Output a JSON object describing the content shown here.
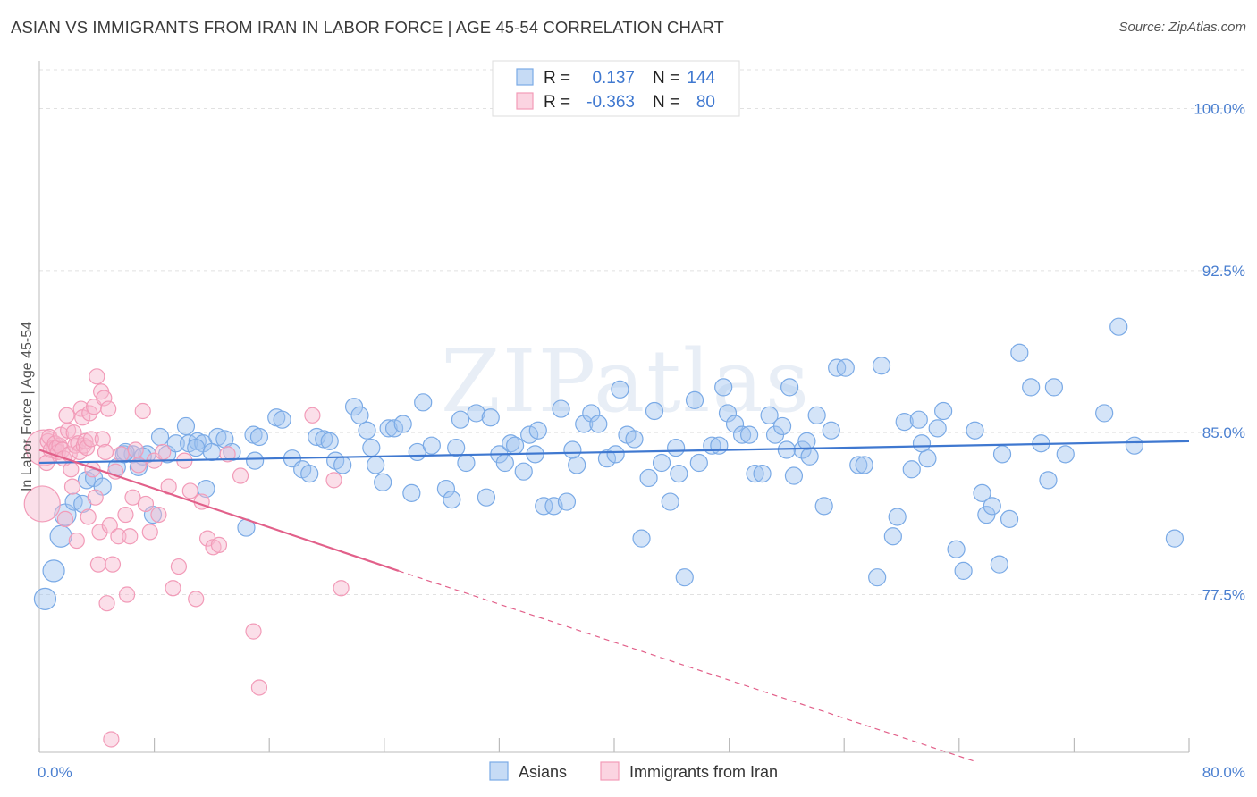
{
  "title": "ASIAN VS IMMIGRANTS FROM IRAN IN LABOR FORCE | AGE 45-54 CORRELATION CHART",
  "source": "Source: ZipAtlas.com",
  "watermark": "ZIPatlas",
  "chart_data": {
    "type": "scatter",
    "ylabel": "In Labor Force | Age 45-54",
    "xlim": [
      0,
      80
    ],
    "ylim": [
      70.2,
      101.8
    ],
    "x_tick_labels": [
      "0.0%",
      "80.0%"
    ],
    "y_ticks": [
      {
        "value": 100.0,
        "label": "100.0%"
      },
      {
        "value": 92.5,
        "label": "92.5%"
      },
      {
        "value": 85.0,
        "label": "85.0%"
      },
      {
        "value": 77.5,
        "label": "77.5%"
      }
    ],
    "legend": {
      "rows": [
        {
          "r_label": "R =",
          "r_value": "0.137",
          "n_label": "N =",
          "n_value": "144"
        },
        {
          "r_label": "R =",
          "r_value": "-0.363",
          "n_label": "N =",
          "n_value": "80"
        }
      ]
    },
    "series": [
      {
        "name": "Asians",
        "color": "#7aaae6",
        "line_color": "#3f78d0",
        "trend": {
          "x0": 0,
          "y0": 83.6,
          "x1": 80,
          "y1": 84.6
        },
        "points": [
          [
            0.4,
            77.3
          ],
          [
            1.0,
            78.6
          ],
          [
            1.5,
            80.2
          ],
          [
            1.8,
            81.2
          ],
          [
            2.4,
            81.8
          ],
          [
            3.3,
            82.8
          ],
          [
            3.8,
            82.9
          ],
          [
            4.4,
            82.5
          ],
          [
            3.0,
            81.7
          ],
          [
            5.4,
            83.4
          ],
          [
            5.9,
            84.0
          ],
          [
            6.5,
            84.0
          ],
          [
            6.9,
            83.4
          ],
          [
            7.5,
            84.0
          ],
          [
            7.9,
            81.2
          ],
          [
            8.4,
            84.8
          ],
          [
            8.9,
            84.0
          ],
          [
            9.5,
            84.5
          ],
          [
            10.4,
            84.5
          ],
          [
            10.2,
            85.3
          ],
          [
            11.0,
            84.6
          ],
          [
            11.4,
            84.5
          ],
          [
            11.6,
            82.4
          ],
          [
            12.4,
            84.8
          ],
          [
            12.9,
            84.7
          ],
          [
            13.4,
            84.1
          ],
          [
            14.4,
            80.6
          ],
          [
            14.9,
            84.9
          ],
          [
            15.3,
            84.8
          ],
          [
            16.5,
            85.7
          ],
          [
            16.9,
            85.6
          ],
          [
            17.6,
            83.8
          ],
          [
            18.3,
            83.3
          ],
          [
            18.8,
            83.1
          ],
          [
            19.3,
            84.8
          ],
          [
            19.8,
            84.7
          ],
          [
            20.2,
            84.6
          ],
          [
            20.6,
            83.7
          ],
          [
            21.1,
            83.5
          ],
          [
            21.9,
            86.2
          ],
          [
            22.3,
            85.8
          ],
          [
            22.8,
            85.1
          ],
          [
            23.1,
            84.3
          ],
          [
            23.4,
            83.5
          ],
          [
            23.9,
            82.7
          ],
          [
            24.3,
            85.2
          ],
          [
            24.7,
            85.2
          ],
          [
            25.3,
            85.4
          ],
          [
            25.9,
            82.2
          ],
          [
            26.3,
            84.1
          ],
          [
            26.7,
            86.4
          ],
          [
            27.3,
            84.4
          ],
          [
            28.3,
            82.4
          ],
          [
            28.7,
            81.9
          ],
          [
            29.3,
            85.6
          ],
          [
            29.7,
            83.6
          ],
          [
            30.4,
            85.9
          ],
          [
            31.1,
            82.0
          ],
          [
            31.4,
            85.7
          ],
          [
            32.0,
            84.0
          ],
          [
            32.4,
            83.6
          ],
          [
            32.8,
            84.5
          ],
          [
            33.1,
            84.4
          ],
          [
            33.7,
            83.2
          ],
          [
            34.1,
            84.9
          ],
          [
            34.7,
            85.1
          ],
          [
            35.1,
            81.6
          ],
          [
            35.8,
            81.6
          ],
          [
            36.3,
            86.1
          ],
          [
            36.7,
            81.8
          ],
          [
            37.4,
            83.5
          ],
          [
            37.9,
            85.4
          ],
          [
            38.4,
            85.9
          ],
          [
            38.9,
            85.4
          ],
          [
            39.5,
            83.8
          ],
          [
            40.1,
            84.0
          ],
          [
            40.4,
            87.0
          ],
          [
            40.9,
            84.9
          ],
          [
            41.4,
            84.7
          ],
          [
            41.9,
            80.1
          ],
          [
            42.4,
            82.9
          ],
          [
            42.8,
            86.0
          ],
          [
            43.3,
            83.6
          ],
          [
            43.9,
            81.8
          ],
          [
            44.5,
            83.1
          ],
          [
            44.9,
            78.3
          ],
          [
            45.6,
            86.5
          ],
          [
            45.9,
            83.6
          ],
          [
            46.8,
            84.4
          ],
          [
            47.3,
            84.4
          ],
          [
            47.6,
            87.1
          ],
          [
            47.9,
            85.9
          ],
          [
            48.4,
            85.4
          ],
          [
            48.9,
            84.9
          ],
          [
            49.4,
            84.9
          ],
          [
            49.8,
            83.1
          ],
          [
            50.3,
            83.1
          ],
          [
            50.8,
            85.8
          ],
          [
            51.2,
            84.9
          ],
          [
            51.7,
            85.3
          ],
          [
            52.2,
            87.1
          ],
          [
            52.5,
            83.0
          ],
          [
            53.1,
            84.2
          ],
          [
            53.6,
            83.9
          ],
          [
            54.1,
            85.8
          ],
          [
            54.6,
            81.6
          ],
          [
            55.1,
            85.1
          ],
          [
            55.5,
            88.0
          ],
          [
            56.1,
            88.0
          ],
          [
            57.0,
            83.5
          ],
          [
            57.4,
            83.5
          ],
          [
            58.3,
            78.3
          ],
          [
            58.6,
            88.1
          ],
          [
            59.4,
            80.2
          ],
          [
            59.7,
            81.1
          ],
          [
            60.2,
            85.5
          ],
          [
            60.7,
            83.3
          ],
          [
            61.2,
            85.6
          ],
          [
            61.8,
            83.8
          ],
          [
            62.5,
            85.2
          ],
          [
            62.9,
            86.0
          ],
          [
            63.8,
            79.6
          ],
          [
            64.3,
            78.6
          ],
          [
            65.1,
            85.1
          ],
          [
            65.6,
            82.2
          ],
          [
            65.9,
            81.2
          ],
          [
            66.3,
            81.6
          ],
          [
            66.8,
            78.9
          ],
          [
            67.5,
            81.0
          ],
          [
            68.2,
            88.7
          ],
          [
            69.0,
            87.1
          ],
          [
            69.7,
            84.5
          ],
          [
            70.2,
            82.8
          ],
          [
            70.6,
            87.1
          ],
          [
            71.4,
            84.0
          ],
          [
            74.1,
            85.9
          ],
          [
            75.1,
            89.9
          ],
          [
            76.2,
            84.4
          ],
          [
            79.0,
            80.1
          ],
          [
            29.0,
            84.3
          ],
          [
            37.1,
            84.2
          ],
          [
            44.3,
            84.3
          ],
          [
            53.4,
            84.6
          ],
          [
            61.4,
            84.5
          ],
          [
            15.0,
            83.7
          ],
          [
            34.5,
            84.0
          ],
          [
            52.0,
            84.2
          ],
          [
            67.0,
            84.0
          ],
          [
            6.0,
            84.1
          ],
          [
            10.9,
            84.3
          ],
          [
            7.2,
            83.9
          ],
          [
            12.0,
            84.1
          ]
        ]
      },
      {
        "name": "Immigrants from Iran",
        "color": "#f29bb8",
        "line_color": "#e2608a",
        "trend": {
          "x0": 0,
          "y0": 84.2,
          "x1": 25.0,
          "y1": 78.6
        },
        "trend_dashed": {
          "x0": 25.0,
          "y0": 78.6,
          "x1": 65.0,
          "y1": 69.8
        },
        "points": [
          [
            0.2,
            81.7
          ],
          [
            0.3,
            84.3
          ],
          [
            0.5,
            83.6
          ],
          [
            0.6,
            84.6
          ],
          [
            0.7,
            84.8
          ],
          [
            0.8,
            84.2
          ],
          [
            1.0,
            84.3
          ],
          [
            1.1,
            84.5
          ],
          [
            1.2,
            84.3
          ],
          [
            1.3,
            84.1
          ],
          [
            1.4,
            84.4
          ],
          [
            1.5,
            84.9
          ],
          [
            1.6,
            84.2
          ],
          [
            1.7,
            83.8
          ],
          [
            1.8,
            81.0
          ],
          [
            1.9,
            85.8
          ],
          [
            2.0,
            85.1
          ],
          [
            2.1,
            84.0
          ],
          [
            2.2,
            83.3
          ],
          [
            2.3,
            82.5
          ],
          [
            2.4,
            85.0
          ],
          [
            2.5,
            84.4
          ],
          [
            2.6,
            80.0
          ],
          [
            2.7,
            84.5
          ],
          [
            2.8,
            84.1
          ],
          [
            2.9,
            86.1
          ],
          [
            3.0,
            85.7
          ],
          [
            3.1,
            84.4
          ],
          [
            3.2,
            84.6
          ],
          [
            3.3,
            84.3
          ],
          [
            3.4,
            81.1
          ],
          [
            3.5,
            85.9
          ],
          [
            3.6,
            84.7
          ],
          [
            3.7,
            83.3
          ],
          [
            3.8,
            86.2
          ],
          [
            3.9,
            82.0
          ],
          [
            4.0,
            87.6
          ],
          [
            4.1,
            78.9
          ],
          [
            4.2,
            80.4
          ],
          [
            4.3,
            86.9
          ],
          [
            4.4,
            84.7
          ],
          [
            4.5,
            86.6
          ],
          [
            4.6,
            84.1
          ],
          [
            4.7,
            77.1
          ],
          [
            4.8,
            86.1
          ],
          [
            4.9,
            80.7
          ],
          [
            5.1,
            78.9
          ],
          [
            5.3,
            83.2
          ],
          [
            5.5,
            80.2
          ],
          [
            5.7,
            84.0
          ],
          [
            6.0,
            81.2
          ],
          [
            6.1,
            77.5
          ],
          [
            6.3,
            80.2
          ],
          [
            6.5,
            82.0
          ],
          [
            6.7,
            84.2
          ],
          [
            6.9,
            83.5
          ],
          [
            7.2,
            86.0
          ],
          [
            7.4,
            81.7
          ],
          [
            7.7,
            80.4
          ],
          [
            8.0,
            83.7
          ],
          [
            8.3,
            81.2
          ],
          [
            8.6,
            84.1
          ],
          [
            9.0,
            82.5
          ],
          [
            9.3,
            77.8
          ],
          [
            9.7,
            78.8
          ],
          [
            10.1,
            83.7
          ],
          [
            10.5,
            82.3
          ],
          [
            10.9,
            77.3
          ],
          [
            11.3,
            81.8
          ],
          [
            11.7,
            80.1
          ],
          [
            12.1,
            79.7
          ],
          [
            12.5,
            79.8
          ],
          [
            13.1,
            84.0
          ],
          [
            14.0,
            83.0
          ],
          [
            14.9,
            75.8
          ],
          [
            15.3,
            73.2
          ],
          [
            5.0,
            70.8
          ],
          [
            19.0,
            85.8
          ],
          [
            20.5,
            82.8
          ],
          [
            21.0,
            77.8
          ]
        ]
      }
    ]
  }
}
